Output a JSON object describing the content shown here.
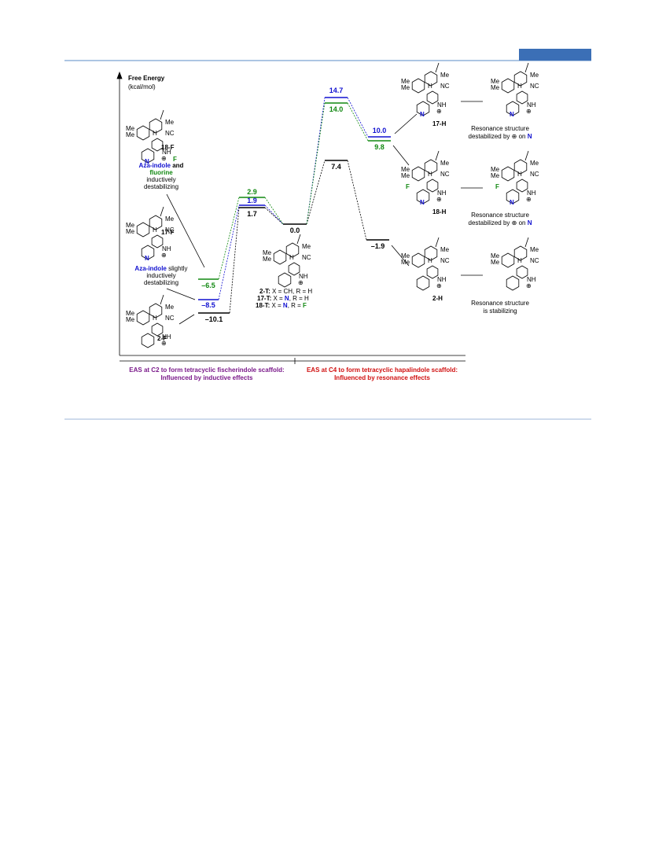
{
  "figure": {
    "y_axis": {
      "title": "Free Energy",
      "unit": "(kcal/mol)"
    },
    "levels": {
      "f2": "–10.1",
      "f17": "–8.5",
      "f18": "–6.5",
      "ts_c2_2": "1.7",
      "ts_c2_17": "1.9",
      "ts_c2_18": "2.9",
      "start": "0.0",
      "ts_c4_2": "7.4",
      "ts_c4_17": "14.7",
      "ts_c4_18": "14.0",
      "h2": "–1.9",
      "h17": "10.0",
      "h18": "9.8"
    },
    "compounds": {
      "f18": "18-F",
      "f17": "17-F",
      "f2": "2-F",
      "h17": "17-H",
      "h18": "18-H",
      "h2": "2-H"
    },
    "notes": {
      "f18": [
        "Aza-indole",
        " and",
        "fluorine",
        "inductively",
        "destabilizing"
      ],
      "f17": [
        "Aza-indole",
        " slightly",
        "inductively",
        "destabilizing"
      ]
    },
    "key": [
      [
        "2-T:",
        " X = CH, R = H"
      ],
      [
        "17-T:",
        " X = ",
        "N",
        ", R = H"
      ],
      [
        "18-T:",
        " X = ",
        "N",
        ", R = ",
        "F"
      ]
    ],
    "resonance": {
      "h17": [
        "Resonance structure",
        "destabilized by ⊕ on ",
        "N"
      ],
      "h18": [
        "Resonance structure",
        "destabilized by ⊕ on ",
        "N"
      ],
      "h2": [
        "Resonance structure",
        "is stabilizing"
      ]
    },
    "atoms": {
      "me": "Me",
      "nc": "NC",
      "h": "H",
      "nh": "NH",
      "n": "N",
      "f": "F",
      "plus": "⊕"
    },
    "footer": {
      "left": [
        "EAS at C2 to form tetracyclic fischerindole scaffold:",
        "Influenced by inductive effects"
      ],
      "right": [
        "EAS at C4 to form tetracyclic hapalindole scaffold:",
        "Influenced by resonance effects"
      ]
    }
  }
}
